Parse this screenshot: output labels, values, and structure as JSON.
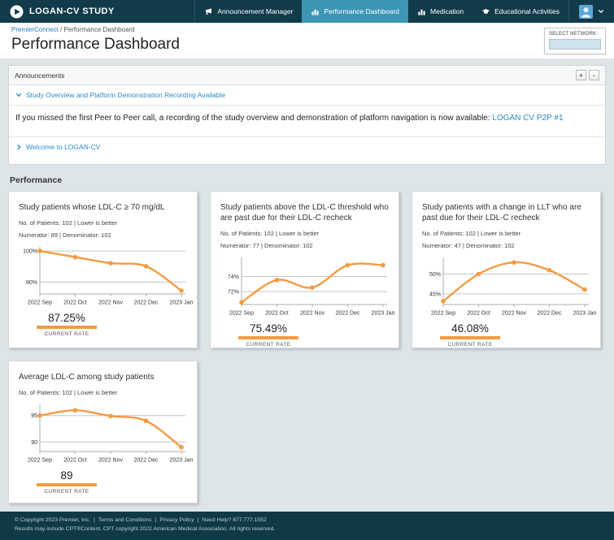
{
  "colors": {
    "header_bg": "#123b4a",
    "active_tab": "#3d96b4",
    "accent_orange": "#f49b42",
    "link_blue": "#2a8bc5",
    "avatar_blue": "#5ba7d9"
  },
  "header": {
    "brand": "LOGAN-CV STUDY",
    "nav": [
      {
        "label": "Announcement Manager",
        "icon": "megaphone-icon",
        "active": false
      },
      {
        "label": "Performance Dashboard",
        "icon": "bar-chart-icon",
        "active": true
      },
      {
        "label": "Medication",
        "icon": "bar-chart-icon",
        "active": false
      },
      {
        "label": "Educational Activities",
        "icon": "graduation-cap-icon",
        "active": false
      }
    ]
  },
  "breadcrumb": {
    "link": "PremierConnect",
    "separator": " / ",
    "current": "Performance Dashboard"
  },
  "page_title": "Performance Dashboard",
  "network_selector": {
    "label": "SELECT NETWORK:"
  },
  "announcements": {
    "title": "Announcements",
    "expand_all": "+",
    "collapse_all": "-",
    "items": [
      {
        "title": "Study Overview and Platform Demonstration Recording Available",
        "expanded": true,
        "body_text": "If you missed the first Peer to Peer call, a recording of the study overview and demonstration of platform navigation is now available: ",
        "body_link": "LOGAN CV P2P #1"
      },
      {
        "title": "Welcome to LOGAN-CV",
        "expanded": false
      }
    ]
  },
  "performance": {
    "title": "Performance",
    "cards": [
      {
        "title": "Study patients whose LDL-C ≥ 70 mg/dL",
        "patients_line": "No. of Patients:  102  |  Lower is better",
        "numerator_line": "Numerator: 89  |  Denominator: 102",
        "current_rate": "87.25%",
        "rate_label": "CURRENT RATE"
      },
      {
        "title": "Study patients above the LDL-C threshold who are past due for their LDL-C recheck",
        "patients_line": "No. of Patients:  102  |  Lower is better",
        "numerator_line": "Numerator: 77  |  Denominator: 102",
        "current_rate": "75.49%",
        "rate_label": "CURRENT RATE"
      },
      {
        "title": "Study patients with a change in LLT who are past due for their LDL-C recheck",
        "patients_line": "No. of Patients:  102  |  Lower is better",
        "numerator_line": "Numerator: 47  |  Denominator: 102",
        "current_rate": "46.08%",
        "rate_label": "CURRENT RATE"
      },
      {
        "title": "Average LDL-C among study patients",
        "patients_line": "No. of Patients:  102  |  Lower is better",
        "current_rate": "89",
        "rate_label": "CURRENT RATE"
      }
    ]
  },
  "chart_data": [
    {
      "type": "line",
      "title": "Study patients whose LDL-C >= 70 mg/dL",
      "categories": [
        "2022 Sep",
        "2022 Oct",
        "2022 Nov",
        "2022 Dec",
        "2023 Jan"
      ],
      "values": [
        100,
        98.04,
        96.08,
        95.1,
        87.25
      ],
      "yticks": [
        {
          "value": 100,
          "label": "100%"
        },
        {
          "value": 90,
          "label": "90%"
        }
      ],
      "ymin": 86.2,
      "ymax": 100.8,
      "line_color": "#f49b42",
      "grid": true,
      "legend": false
    },
    {
      "type": "line",
      "title": "Study patients above the LDL-C threshold who are past due for their LDL-C recheck",
      "categories": [
        "2022 Sep",
        "2022 Oct",
        "2022 Nov",
        "2022 Dec",
        "2023 Jan"
      ],
      "values": [
        70.59,
        73.53,
        72.55,
        75.49,
        75.49
      ],
      "yticks": [
        {
          "value": 74,
          "label": "74%"
        },
        {
          "value": 72,
          "label": "72%"
        }
      ],
      "ymin": 70.3,
      "ymax": 76.3,
      "line_color": "#f49b42",
      "grid": true,
      "legend": false
    },
    {
      "type": "line",
      "title": "Study patients with a change in LLT who are past due for their LDL-C recheck",
      "categories": [
        "2022 Sep",
        "2022 Oct",
        "2022 Nov",
        "2022 Dec",
        "2023 Jan"
      ],
      "values": [
        43.14,
        50.0,
        52.94,
        50.98,
        46.08
      ],
      "yticks": [
        {
          "value": 50,
          "label": "50%"
        },
        {
          "value": 45,
          "label": "45%"
        }
      ],
      "ymin": 42.3,
      "ymax": 53.8,
      "line_color": "#f49b42",
      "grid": true,
      "legend": false
    },
    {
      "type": "line",
      "title": "Average LDL-C among study patients",
      "categories": [
        "2022 Sep",
        "2022 Oct",
        "2022 Nov",
        "2022 Dec",
        "2023 Jan"
      ],
      "values": [
        95,
        96,
        94.9,
        94,
        89
      ],
      "yticks": [
        {
          "value": 95,
          "label": "95"
        },
        {
          "value": 90,
          "label": "90"
        }
      ],
      "ymin": 88.2,
      "ymax": 96.8,
      "line_color": "#f49b42",
      "grid": true,
      "legend": false
    }
  ],
  "footer": {
    "copyright": "© Copyright 2023 Premier, Inc.",
    "terms": "Terms and Conditions",
    "privacy": "Privacy Policy",
    "help": "Need Help? 877.777.1552",
    "line2": "Results may include CPT®Content. CPT copyright 2022 American Medical Association. All rights reserved."
  }
}
